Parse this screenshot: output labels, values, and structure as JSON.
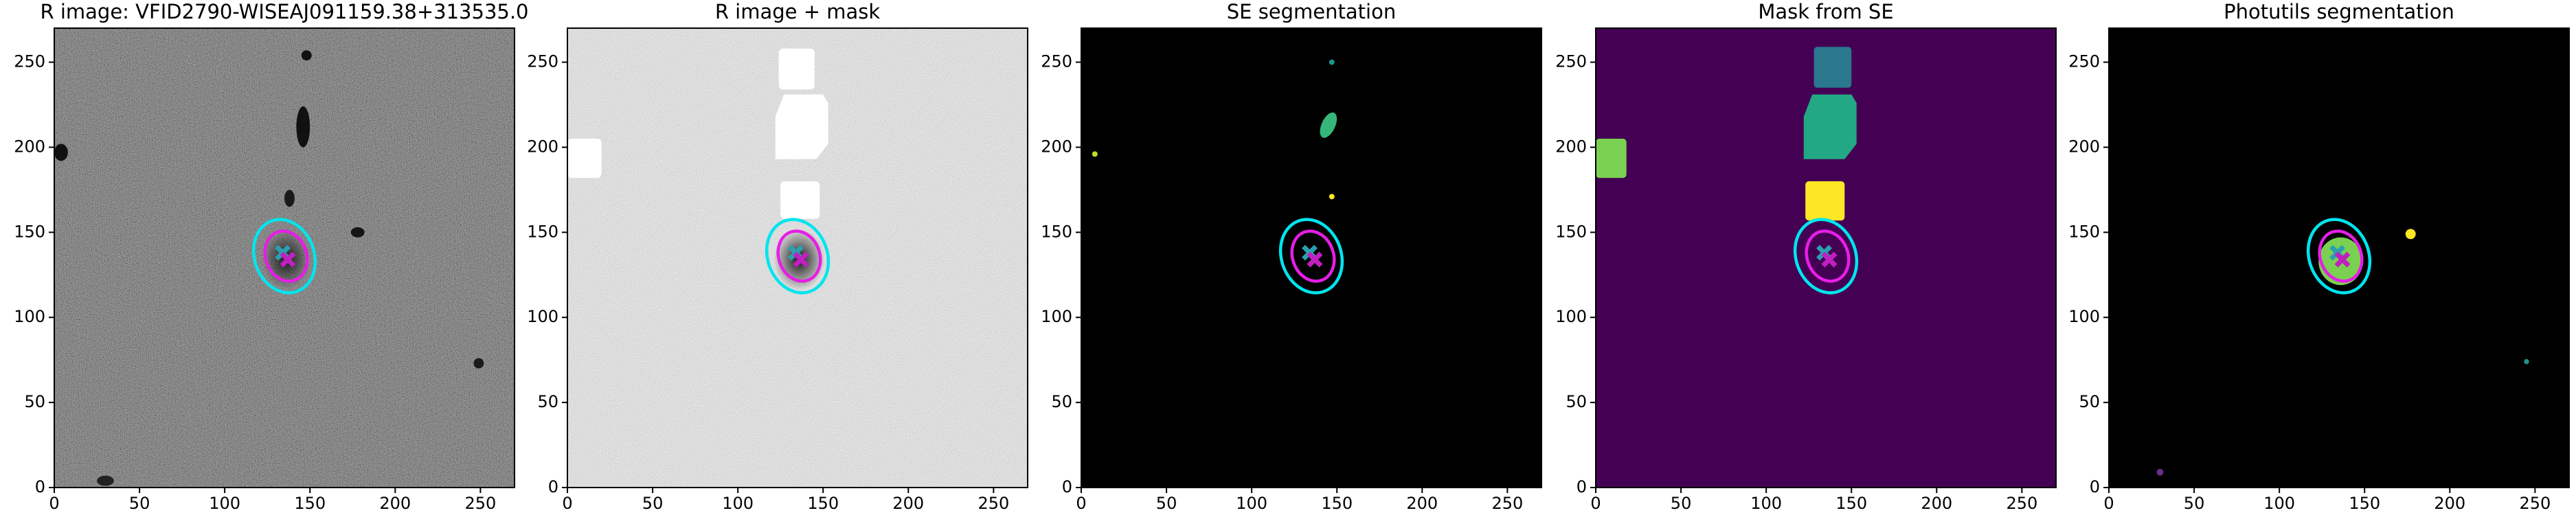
{
  "chart_data": [
    {
      "type": "image",
      "title": "R image: VFID2790-WISEAJ091159.38+313535.0",
      "xlim": [
        0,
        270
      ],
      "ylim": [
        0,
        270
      ],
      "xticks": [
        0,
        50,
        100,
        150,
        200,
        250
      ],
      "yticks": [
        0,
        50,
        100,
        150,
        200,
        250
      ]
    },
    {
      "type": "image",
      "title": "R image + mask",
      "xlim": [
        0,
        270
      ],
      "ylim": [
        0,
        270
      ],
      "xticks": [
        0,
        50,
        100,
        150,
        200,
        250
      ],
      "yticks": [
        0,
        50,
        100,
        150,
        200,
        250
      ]
    },
    {
      "type": "image",
      "title": "SE segmentation",
      "xlim": [
        0,
        270
      ],
      "ylim": [
        0,
        270
      ],
      "xticks": [
        0,
        50,
        100,
        150,
        200,
        250
      ],
      "yticks": [
        0,
        50,
        100,
        150,
        200,
        250
      ]
    },
    {
      "type": "image",
      "title": "Mask from SE",
      "xlim": [
        0,
        270
      ],
      "ylim": [
        0,
        270
      ],
      "xticks": [
        0,
        50,
        100,
        150,
        200,
        250
      ],
      "yticks": [
        0,
        50,
        100,
        150,
        200,
        250
      ]
    },
    {
      "type": "image",
      "title": "Photutils segmentation",
      "xlim": [
        0,
        270
      ],
      "ylim": [
        0,
        270
      ],
      "xticks": [
        0,
        50,
        100,
        150,
        200,
        250
      ],
      "yticks": [
        0,
        50,
        100,
        150,
        200,
        250
      ]
    }
  ]
}
